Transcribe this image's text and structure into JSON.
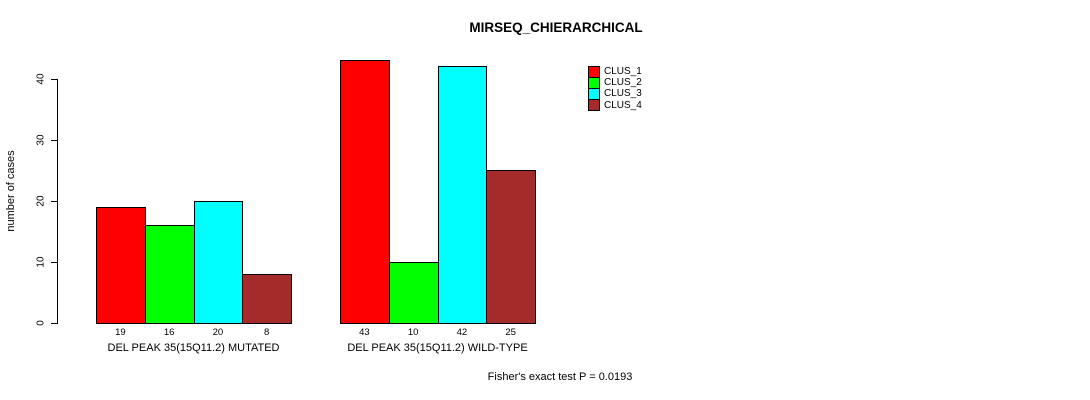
{
  "chart_data": {
    "type": "bar",
    "title": "MIRSEQ_CHIERARCHICAL",
    "ylabel": "number of cases",
    "xlabel": "",
    "ylim": [
      0,
      43
    ],
    "yticks": [
      0,
      10,
      20,
      30,
      40
    ],
    "grid": false,
    "legend_position": "top-right",
    "categories": [
      "DEL PEAK 35(15Q11.2) MUTATED",
      "DEL PEAK 35(15Q11.2) WILD-TYPE"
    ],
    "series": [
      {
        "name": "CLUS_1",
        "color": "#FF0000",
        "values": [
          19,
          43
        ]
      },
      {
        "name": "CLUS_2",
        "color": "#00FF00",
        "values": [
          16,
          10
        ]
      },
      {
        "name": "CLUS_3",
        "color": "#00FFFF",
        "values": [
          20,
          42
        ]
      },
      {
        "name": "CLUS_4",
        "color": "#A52A2A",
        "values": [
          8,
          25
        ]
      }
    ],
    "bar_value_labels_shown": true,
    "annotation": "Fisher's exact test P = 0.0193",
    "axis_color": "#000000",
    "text_color": "#000000",
    "background_color": "#FFFFFF"
  }
}
